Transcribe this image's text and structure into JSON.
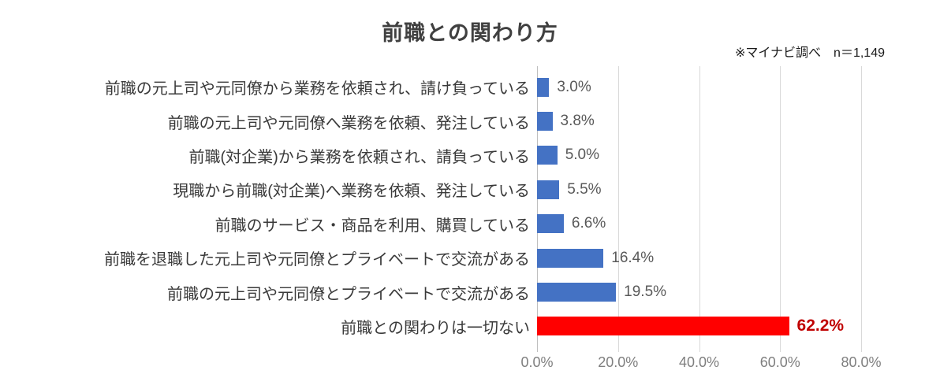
{
  "title": "前職との関わり方",
  "note": "※マイナビ調べ　n＝1,149",
  "chart_data": {
    "type": "bar",
    "orientation": "horizontal",
    "title": "前職との関わり方",
    "annotation": "※マイナビ調べ　n＝1,149",
    "categories": [
      "前職の元上司や元同僚から業務を依頼され、請け負っている",
      "前職の元上司や元同僚へ業務を依頼、発注している",
      "前職(対企業)から業務を依頼され、請負っている",
      "現職から前職(対企業)へ業務を依頼、発注している",
      "前職のサービス・商品を利用、購買している",
      "前職を退職した元上司や元同僚とプライベートで交流がある",
      "前職の元上司や元同僚とプライベートで交流がある",
      "前職との関わりは一切ない"
    ],
    "values": [
      3.0,
      3.8,
      5.0,
      5.5,
      6.6,
      16.4,
      19.5,
      62.2
    ],
    "value_labels": [
      "3.0%",
      "3.8%",
      "5.0%",
      "5.5%",
      "6.6%",
      "16.4%",
      "19.5%",
      "62.2%"
    ],
    "highlight_index": 7,
    "xlabel": "",
    "ylabel": "",
    "xlim": [
      0,
      80
    ],
    "xticks": [
      0,
      20,
      40,
      60,
      80
    ],
    "xtick_labels": [
      "0.0%",
      "20.0%",
      "40.0%",
      "60.0%",
      "80.0%"
    ],
    "grid": "vertical-only",
    "legend": "none",
    "colors": {
      "bar": "#4472c4",
      "highlight_bar": "#ff0000",
      "highlight_value_label": "#c00000",
      "value_label": "#595959",
      "category_label": "#3a3a3a",
      "axis_tick_label": "#7f7f7f",
      "gridline": "#d9d9d9",
      "axis_line": "#bfbfbf",
      "background": "#ffffff"
    }
  }
}
